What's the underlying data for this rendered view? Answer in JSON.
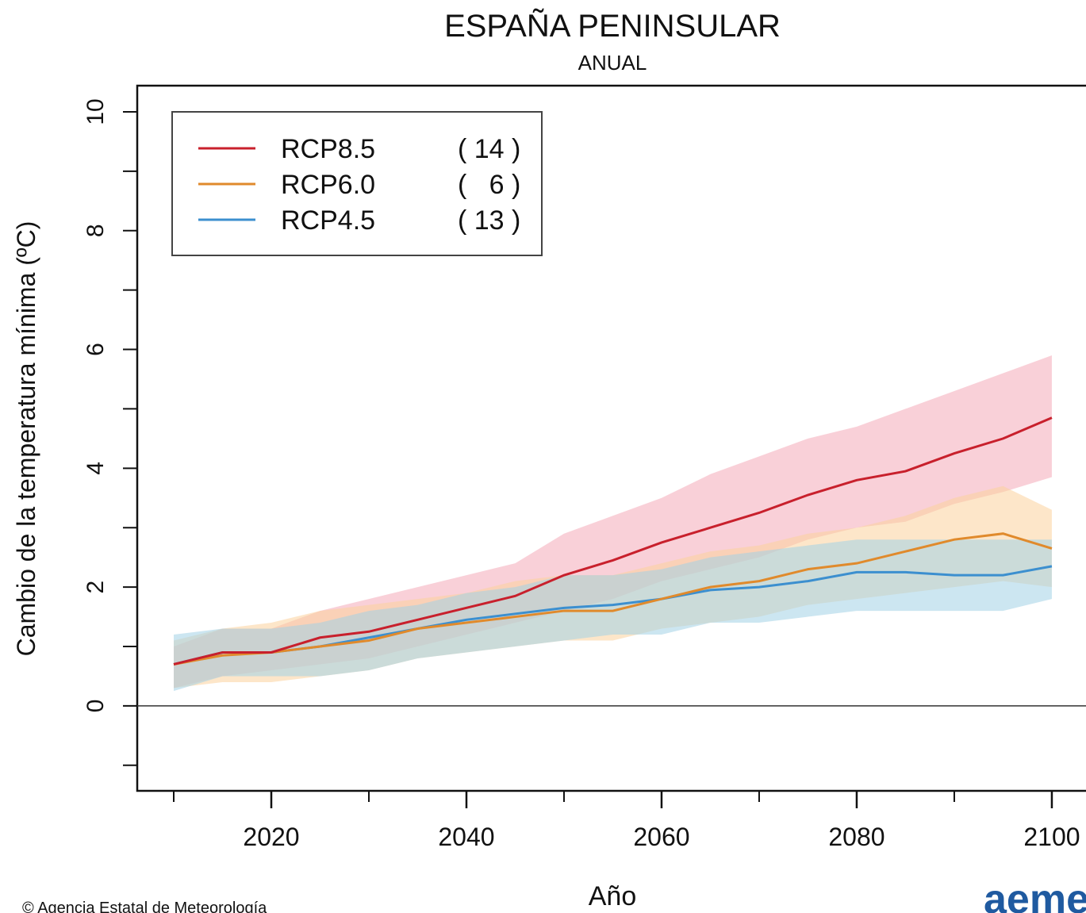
{
  "chart_data": {
    "type": "line",
    "title": "ESPAÑA PENINSULAR",
    "subtitle": "ANUAL",
    "x_label": "Año",
    "y_label": "Cambio de la temperatura mínima (ºC)",
    "footer": "© Agencia Estatal de Meteorología",
    "logo": "aemet",
    "x": [
      2010,
      2015,
      2020,
      2025,
      2030,
      2035,
      2040,
      2045,
      2050,
      2055,
      2060,
      2065,
      2070,
      2075,
      2080,
      2085,
      2090,
      2095,
      2100
    ],
    "xlim": [
      2006.26,
      2103.5
    ],
    "xticks": [
      2020,
      2040,
      2060,
      2080,
      2100
    ],
    "xminor": [
      2010,
      2030,
      2050,
      2070,
      2090
    ],
    "ylim": [
      -1.43,
      10.44
    ],
    "yticks": [
      0,
      2,
      4,
      6,
      8,
      10
    ],
    "yminor": [
      -1,
      1,
      3,
      5,
      7,
      9
    ],
    "zero_line": 0,
    "series": [
      {
        "name": "RCP8.5",
        "legend_label": "( 14 )",
        "color": "#c8202c",
        "band_color": "#f4a9b8",
        "values": [
          0.7,
          0.9,
          0.9,
          1.15,
          1.25,
          1.45,
          1.65,
          1.85,
          2.2,
          2.45,
          2.75,
          3.0,
          3.25,
          3.55,
          3.8,
          3.95,
          4.25,
          4.5,
          4.85
        ],
        "lower": [
          0.3,
          0.5,
          0.6,
          0.7,
          0.8,
          1.0,
          1.2,
          1.4,
          1.6,
          1.8,
          2.1,
          2.3,
          2.5,
          2.8,
          3.0,
          3.1,
          3.4,
          3.6,
          3.85
        ],
        "upper": [
          1.0,
          1.3,
          1.3,
          1.6,
          1.8,
          2.0,
          2.2,
          2.4,
          2.9,
          3.2,
          3.5,
          3.9,
          4.2,
          4.5,
          4.7,
          5.0,
          5.3,
          5.6,
          5.9
        ]
      },
      {
        "name": "RCP6.0",
        "legend_label": "(   6 )",
        "color": "#e08a2c",
        "band_color": "#fbd29c",
        "values": [
          0.7,
          0.85,
          0.9,
          1.0,
          1.1,
          1.3,
          1.4,
          1.5,
          1.6,
          1.6,
          1.8,
          2.0,
          2.1,
          2.3,
          2.4,
          2.6,
          2.8,
          2.9,
          2.65
        ],
        "lower": [
          0.3,
          0.4,
          0.4,
          0.5,
          0.6,
          0.8,
          0.9,
          1.0,
          1.1,
          1.1,
          1.3,
          1.4,
          1.5,
          1.7,
          1.8,
          1.9,
          2.0,
          2.1,
          2.0
        ],
        "upper": [
          1.1,
          1.3,
          1.4,
          1.6,
          1.7,
          1.8,
          1.9,
          2.1,
          2.2,
          2.2,
          2.4,
          2.6,
          2.7,
          2.9,
          3.0,
          3.2,
          3.5,
          3.7,
          3.3
        ]
      },
      {
        "name": "RCP4.5",
        "legend_label": "( 13 )",
        "color": "#3c8fcf",
        "band_color": "#a3d2e6",
        "values": [
          0.7,
          0.9,
          0.9,
          1.0,
          1.15,
          1.3,
          1.45,
          1.55,
          1.65,
          1.7,
          1.8,
          1.95,
          2.0,
          2.1,
          2.25,
          2.25,
          2.2,
          2.2,
          2.35
        ],
        "lower": [
          0.25,
          0.5,
          0.5,
          0.5,
          0.6,
          0.8,
          0.9,
          1.0,
          1.1,
          1.2,
          1.2,
          1.4,
          1.4,
          1.5,
          1.6,
          1.6,
          1.6,
          1.6,
          1.8
        ],
        "upper": [
          1.2,
          1.3,
          1.3,
          1.4,
          1.6,
          1.7,
          1.9,
          2.0,
          2.2,
          2.2,
          2.3,
          2.5,
          2.6,
          2.7,
          2.8,
          2.8,
          2.8,
          2.8,
          2.8
        ]
      }
    ]
  }
}
